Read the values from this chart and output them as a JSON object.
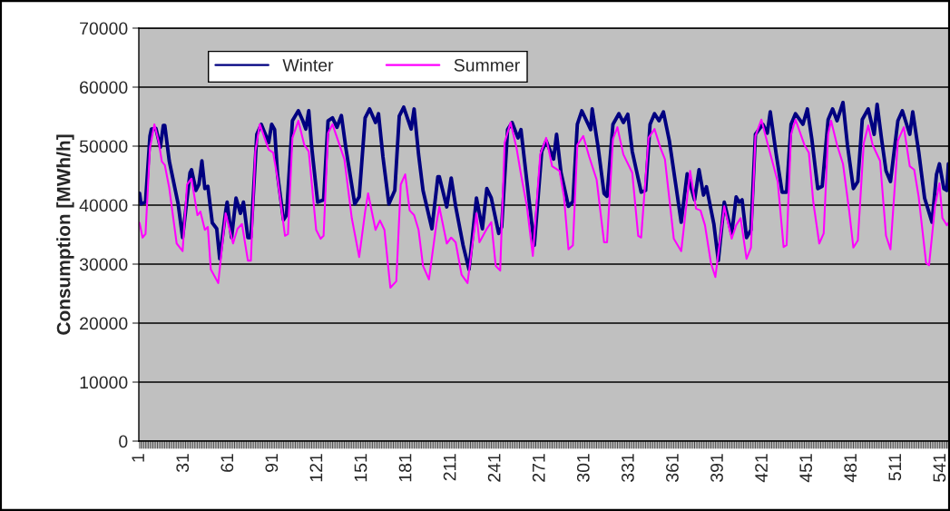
{
  "chart_data": {
    "type": "line",
    "ylabel": "Consumption [MWh/h]",
    "xlim": [
      0.5,
      546.5
    ],
    "xticks": [
      1,
      31,
      61,
      91,
      121,
      151,
      181,
      211,
      241,
      271,
      301,
      331,
      361,
      391,
      421,
      451,
      481,
      511,
      541
    ],
    "ylim": [
      0,
      70000
    ],
    "yticks": [
      0,
      10000,
      20000,
      30000,
      40000,
      50000,
      60000,
      70000
    ],
    "grid": "y",
    "legend": "top left",
    "marker": "none",
    "line_style": "solid",
    "series": [
      {
        "name": "Winter",
        "color": "#000080",
        "x": [
          1,
          2,
          5,
          8,
          9,
          12,
          15,
          17,
          18,
          21,
          27,
          30,
          35,
          36,
          39,
          41,
          43,
          45,
          47,
          50,
          53,
          55,
          59,
          60,
          63,
          66,
          69,
          71,
          74,
          76,
          80,
          83,
          88,
          90,
          92,
          94,
          98,
          100,
          104,
          108,
          111,
          113,
          115,
          117,
          121,
          125,
          128,
          131,
          134,
          137,
          140,
          146,
          149,
          153,
          156,
          160,
          162,
          165,
          169,
          173,
          176,
          179,
          184,
          186,
          189,
          192,
          198,
          202,
          203,
          208,
          211,
          214,
          219,
          223,
          228,
          232,
          235,
          238,
          243,
          245,
          249,
          252,
          256,
          258,
          262,
          267,
          272,
          275,
          280,
          282,
          285,
          290,
          293,
          296,
          299,
          305,
          306,
          310,
          314,
          316,
          320,
          324,
          327,
          330,
          333,
          339,
          342,
          345,
          348,
          351,
          354,
          358,
          362,
          366,
          370,
          375,
          378,
          381,
          383,
          388,
          391,
          395,
          400,
          403,
          405,
          407,
          410,
          413,
          416,
          421,
          424,
          426,
          430,
          434,
          437,
          440,
          443,
          448,
          451,
          454,
          458,
          461,
          465,
          468,
          471,
          475,
          478,
          482,
          485,
          488,
          492,
          496,
          498,
          501,
          504,
          507,
          512,
          515,
          520,
          522,
          526,
          530,
          535,
          538,
          540,
          543,
          545,
          546
        ],
        "values": [
          42000,
          40200,
          40500,
          51700,
          52900,
          53000,
          49800,
          53500,
          53500,
          47500,
          40200,
          34500,
          45500,
          46000,
          42500,
          43500,
          47500,
          42800,
          43200,
          37000,
          36000,
          30900,
          38900,
          40500,
          34500,
          41200,
          38600,
          40500,
          34500,
          34500,
          52000,
          53700,
          50600,
          53700,
          52800,
          45100,
          37500,
          38300,
          54300,
          56000,
          54300,
          52900,
          56000,
          49800,
          40500,
          40900,
          54300,
          54800,
          53200,
          55200,
          49700,
          40200,
          41400,
          54800,
          56300,
          54000,
          55500,
          48200,
          40200,
          42500,
          55100,
          56600,
          52900,
          56300,
          48600,
          42500,
          36000,
          44800,
          44800,
          39700,
          44600,
          39800,
          33200,
          29100,
          41200,
          36000,
          42800,
          41200,
          35200,
          36300,
          52800,
          54000,
          51400,
          52800,
          44000,
          33200,
          49100,
          50900,
          47800,
          52000,
          45500,
          39800,
          40600,
          53700,
          56000,
          52800,
          56300,
          49800,
          42000,
          41500,
          53700,
          55500,
          54000,
          55400,
          49100,
          42200,
          42500,
          53700,
          55500,
          54300,
          55800,
          50900,
          44000,
          37100,
          45300,
          40900,
          46000,
          41700,
          43100,
          36800,
          30600,
          40500,
          35100,
          41400,
          40500,
          40900,
          34500,
          35800,
          52000,
          53700,
          52200,
          55800,
          48600,
          42200,
          42200,
          53700,
          55500,
          53700,
          56300,
          51200,
          42800,
          43200,
          54500,
          56300,
          54300,
          57400,
          50200,
          42800,
          44000,
          54500,
          56300,
          52000,
          57100,
          51200,
          45800,
          44000,
          54300,
          56000,
          52000,
          55800,
          49100,
          41200,
          37100,
          45200,
          47000,
          42800,
          42500,
          47000
        ]
      },
      {
        "name": "Summer",
        "color": "#ff00ff",
        "x": [
          1,
          3,
          5,
          8,
          11,
          14,
          16,
          18,
          21,
          26,
          30,
          33,
          36,
          40,
          42,
          45,
          47,
          49,
          54,
          59,
          64,
          67,
          70,
          74,
          76,
          79,
          82,
          88,
          91,
          94,
          99,
          101,
          104,
          108,
          112,
          115,
          120,
          123,
          125,
          128,
          131,
          139,
          144,
          149,
          153,
          155,
          160,
          163,
          166,
          170,
          174,
          177,
          180,
          183,
          186,
          189,
          192,
          196,
          201,
          203,
          208,
          211,
          214,
          218,
          222,
          228,
          230,
          235,
          238,
          241,
          244,
          247,
          251,
          255,
          258,
          262,
          266,
          271,
          275,
          279,
          284,
          287,
          290,
          293,
          296,
          300,
          304,
          309,
          314,
          316,
          320,
          323,
          327,
          333,
          337,
          339,
          344,
          348,
          352,
          355,
          361,
          366,
          372,
          376,
          379,
          382,
          386,
          389,
          395,
          400,
          403,
          406,
          410,
          413,
          416,
          420,
          424,
          431,
          435,
          437,
          440,
          443,
          449,
          452,
          455,
          459,
          462,
          465,
          467,
          471,
          475,
          479,
          482,
          485,
          489,
          492,
          495,
          500,
          504,
          507,
          512,
          516,
          520,
          523,
          526,
          531,
          533,
          537,
          540,
          542,
          545,
          546
        ],
        "values": [
          37000,
          34500,
          35100,
          49700,
          53700,
          50600,
          47400,
          46800,
          42900,
          33500,
          32200,
          43500,
          44500,
          38300,
          38900,
          35800,
          36300,
          29100,
          26800,
          38600,
          33500,
          36000,
          36800,
          30600,
          30600,
          49100,
          53700,
          49400,
          48900,
          44500,
          34800,
          35100,
          51400,
          54300,
          50200,
          49100,
          35800,
          34300,
          34800,
          52200,
          53700,
          47800,
          37800,
          31200,
          38900,
          42000,
          35800,
          37400,
          35800,
          26000,
          27100,
          43500,
          45200,
          39100,
          38300,
          35800,
          29700,
          27400,
          36800,
          39700,
          33500,
          34500,
          33700,
          28200,
          26800,
          38600,
          33700,
          36000,
          37100,
          29700,
          28900,
          50600,
          54000,
          49700,
          45200,
          39800,
          31400,
          48600,
          51400,
          46600,
          45800,
          41400,
          32500,
          33200,
          50200,
          51700,
          48200,
          44300,
          33700,
          33700,
          51200,
          53200,
          48600,
          45500,
          34800,
          34500,
          51400,
          52900,
          49700,
          47800,
          34300,
          32200,
          45800,
          39400,
          39100,
          36600,
          30200,
          27800,
          39800,
          34300,
          36600,
          37800,
          30900,
          32800,
          51700,
          54500,
          50600,
          44000,
          32900,
          33200,
          52000,
          54500,
          50200,
          48900,
          40500,
          33500,
          35200,
          52000,
          54300,
          50200,
          47000,
          39400,
          32800,
          34000,
          50500,
          53500,
          50200,
          47500,
          34800,
          32500,
          50900,
          53200,
          46600,
          46000,
          41400,
          30200,
          29800,
          39800,
          43700,
          37800,
          36600,
          37000
        ]
      }
    ]
  }
}
